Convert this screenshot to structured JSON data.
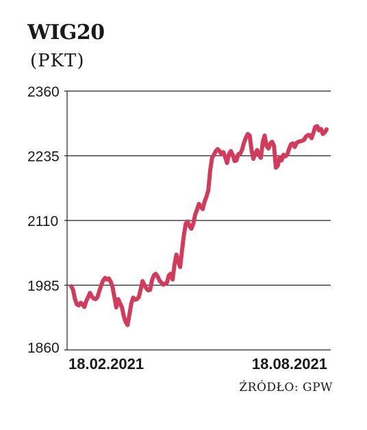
{
  "chart_data": {
    "type": "line",
    "title": "WIG20",
    "subtitle": "(PKT)",
    "source": "ŹRÓDŁO: GPW",
    "ylim": [
      1860,
      2360
    ],
    "yticks": [
      "2360",
      "2235",
      "2110",
      "1985",
      "1860"
    ],
    "xticks": [
      {
        "label": "18.02.2021",
        "index": 0
      },
      {
        "label": "18.08.2021",
        "index": 123
      }
    ],
    "color": "#d23b5c",
    "series": [
      {
        "values": [
          1983,
          1976,
          1958,
          1948,
          1946,
          1951,
          1948,
          1943,
          1954,
          1962,
          1970,
          1963,
          1959,
          1958,
          1962,
          1974,
          1985,
          1994,
          1999,
          1996,
          1998,
          1992,
          1982,
          1962,
          1942,
          1958,
          1950,
          1942,
          1925,
          1914,
          1908,
          1928,
          1950,
          1961,
          1957,
          1958,
          1962,
          1977,
          1993,
          1985,
          1979,
          1975,
          1976,
          1994,
          2004,
          2007,
          2002,
          1994,
          1990,
          1986,
          1988,
          1990,
          2004,
          2007,
          1996,
          2024,
          2044,
          2032,
          2020,
          2052,
          2082,
          2104,
          2108,
          2099,
          2094,
          2104,
          2121,
          2131,
          2142,
          2137,
          2132,
          2146,
          2156,
          2168,
          2207,
          2231,
          2237,
          2244,
          2248,
          2244,
          2238,
          2242,
          2232,
          2221,
          2238,
          2244,
          2237,
          2225,
          2226,
          2238,
          2239,
          2247,
          2260,
          2270,
          2277,
          2274,
          2247,
          2229,
          2239,
          2246,
          2236,
          2231,
          2262,
          2274,
          2254,
          2249,
          2259,
          2262,
          2254,
          2212,
          2216,
          2232,
          2226,
          2237,
          2234,
          2237,
          2248,
          2257,
          2259,
          2252,
          2260,
          2262,
          2263,
          2264,
          2266,
          2272,
          2275,
          2275,
          2269,
          2280,
          2291,
          2292,
          2284,
          2287,
          2277,
          2280,
          2286
        ]
      }
    ]
  }
}
